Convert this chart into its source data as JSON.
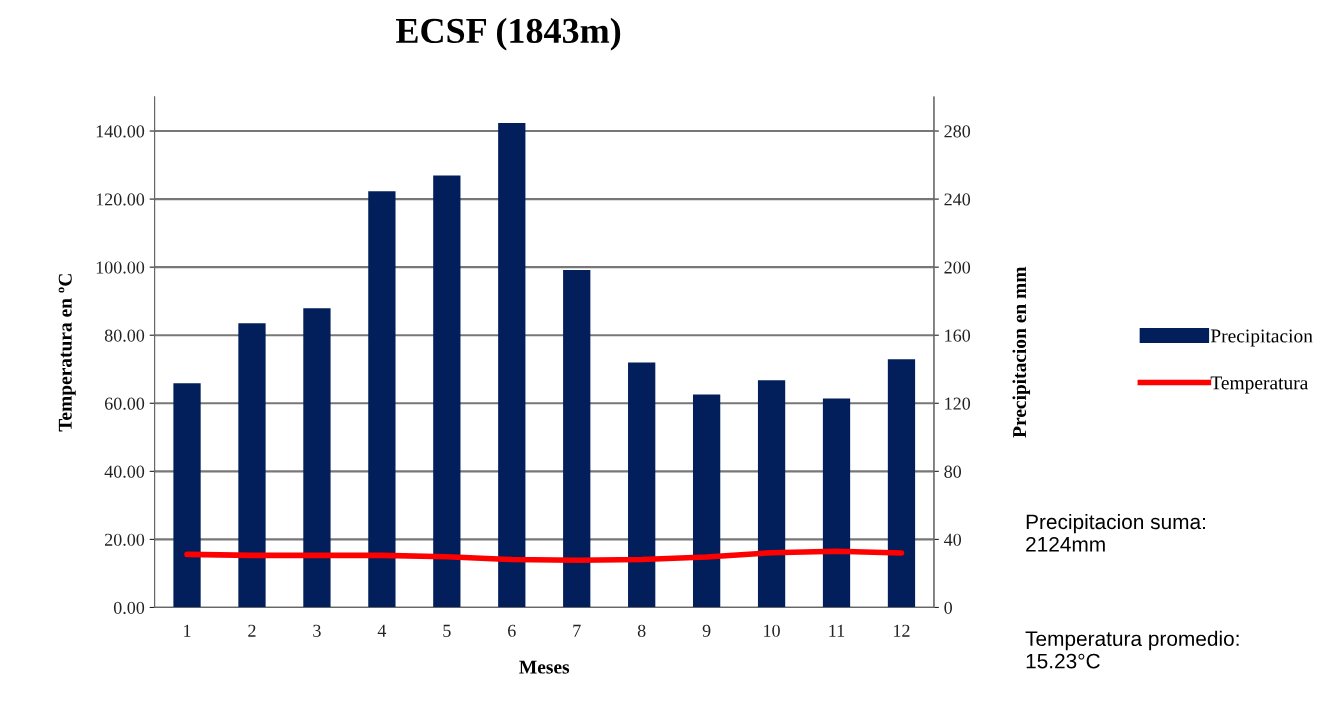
{
  "chart_data": {
    "type": "bar",
    "title": "ECSF (1843m)",
    "xlabel": "Meses",
    "ylabel": "Temperatura en ºC",
    "y2label": "Precipitacion en mm",
    "categories": [
      "1",
      "2",
      "3",
      "4",
      "5",
      "6",
      "7",
      "8",
      "9",
      "10",
      "11",
      "12"
    ],
    "series": [
      {
        "name": "Precipitacion",
        "axis": "y2",
        "color": "#021f5c",
        "values": [
          131.7,
          167.1,
          175.8,
          244.6,
          253.9,
          284.7,
          198.3,
          143.9,
          125.1,
          133.5,
          122.8,
          145.9
        ]
      },
      {
        "name": "Temperatura",
        "type": "line",
        "axis": "y",
        "color": "#ff0000",
        "values": [
          15.6,
          15.3,
          15.3,
          15.3,
          14.9,
          14.1,
          13.9,
          14.1,
          14.8,
          16.1,
          16.5,
          16.0
        ]
      }
    ],
    "ylim": [
      0,
      150
    ],
    "yticks": [
      {
        "value": 0,
        "label": "0.00"
      },
      {
        "value": 20,
        "label": "20.00"
      },
      {
        "value": 40,
        "label": "40.00"
      },
      {
        "value": 60,
        "label": "60.00"
      },
      {
        "value": 80,
        "label": "80.00"
      },
      {
        "value": 100,
        "label": "100.00"
      },
      {
        "value": 120,
        "label": "120.00"
      },
      {
        "value": 140,
        "label": "140.00"
      }
    ],
    "y2lim": [
      0,
      300
    ],
    "y2ticks": [
      0,
      40,
      80,
      120,
      160,
      200,
      240,
      280
    ],
    "grid": "y",
    "legend": "right",
    "marker": "none",
    "line_style": "solid",
    "annotations": [
      "Precipitacion suma:\n2124mm",
      "Temperatura promedio:\n15.23°C"
    ]
  }
}
